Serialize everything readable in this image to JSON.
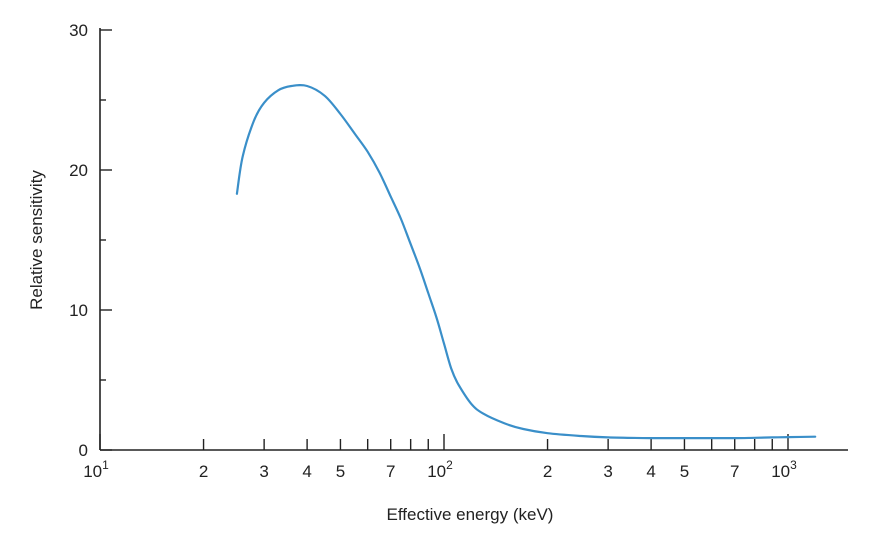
{
  "chart_data": {
    "type": "line",
    "title": "",
    "xlabel": "Effective energy (keV)",
    "ylabel": "Relative sensitivity",
    "x_scale": "log",
    "xlim": [
      10,
      1200
    ],
    "ylim": [
      0,
      30
    ],
    "grid": false,
    "y_ticks": [
      {
        "value": 0,
        "label": "0"
      },
      {
        "value": 10,
        "label": "10"
      },
      {
        "value": 20,
        "label": "20"
      },
      {
        "value": 30,
        "label": "30"
      }
    ],
    "y_minor_ticks": [
      5,
      15,
      25
    ],
    "x_ticks": [
      {
        "value": 10,
        "label": "10",
        "sup": "1"
      },
      {
        "value": 20,
        "label": "2",
        "sup": ""
      },
      {
        "value": 30,
        "label": "3",
        "sup": ""
      },
      {
        "value": 40,
        "label": "4",
        "sup": ""
      },
      {
        "value": 50,
        "label": "5",
        "sup": ""
      },
      {
        "value": 70,
        "label": "7",
        "sup": ""
      },
      {
        "value": 100,
        "label": "10",
        "sup": "2"
      },
      {
        "value": 200,
        "label": "2",
        "sup": ""
      },
      {
        "value": 300,
        "label": "3",
        "sup": ""
      },
      {
        "value": 400,
        "label": "4",
        "sup": ""
      },
      {
        "value": 500,
        "label": "5",
        "sup": ""
      },
      {
        "value": 700,
        "label": "7",
        "sup": ""
      },
      {
        "value": 1000,
        "label": "10",
        "sup": "3"
      }
    ],
    "x_minor_ticks": [
      60,
      80,
      90,
      600,
      800,
      900
    ],
    "series": [
      {
        "color": "#3a8fc9",
        "x": [
          25,
          26,
          28,
          30,
          33,
          36,
          40,
          45,
          50,
          55,
          60,
          65,
          70,
          75,
          80,
          85,
          90,
          95,
          100,
          105,
          110,
          120,
          130,
          150,
          170,
          200,
          250,
          300,
          400,
          500,
          600,
          700,
          800,
          900,
          1000,
          1200
        ],
        "y": [
          18.3,
          21.0,
          23.5,
          24.8,
          25.7,
          26.0,
          26.0,
          25.3,
          24.0,
          22.6,
          21.3,
          19.8,
          18.1,
          16.5,
          14.7,
          13.0,
          11.2,
          9.5,
          7.6,
          5.8,
          4.7,
          3.3,
          2.6,
          1.9,
          1.5,
          1.2,
          1.0,
          0.9,
          0.85,
          0.85,
          0.85,
          0.85,
          0.87,
          0.9,
          0.92,
          0.95
        ]
      }
    ]
  }
}
